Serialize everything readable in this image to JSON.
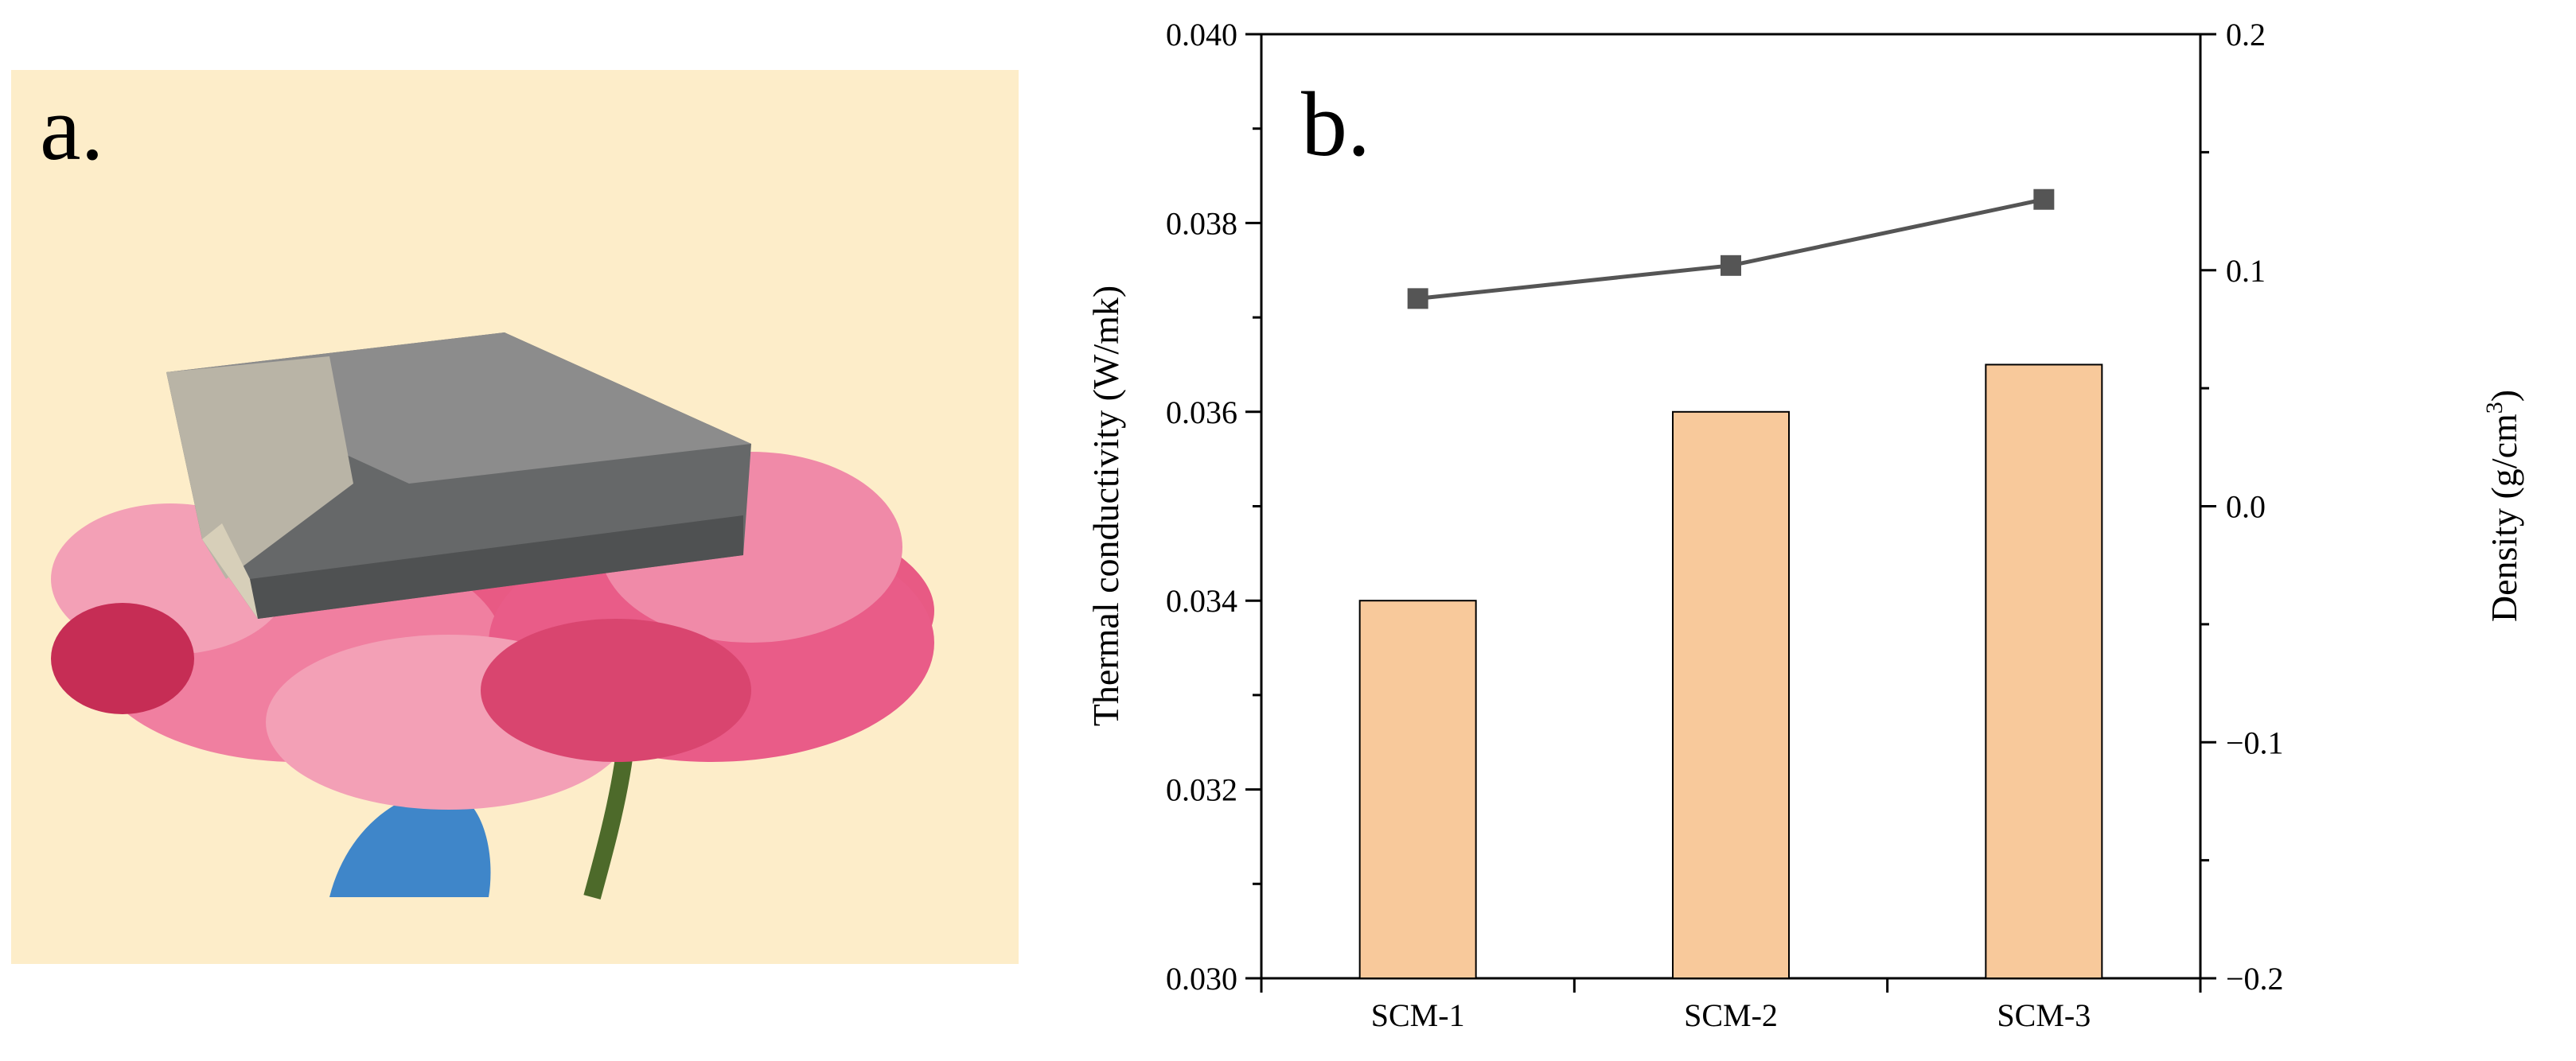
{
  "panel_a": {
    "label": "a.",
    "background_color": "#fdedc9",
    "photo": "grey fibrous composite block resting on a pink rose flower, held from below by a blue-gloved hand"
  },
  "chart_data": {
    "panel_label": "b.",
    "type": "bar",
    "categories": [
      "SCM-1",
      "SCM-2",
      "SCM-3"
    ],
    "series": [
      {
        "name": "",
        "kind": "bar",
        "axis": "left",
        "values": [
          0.034,
          0.036,
          0.0365
        ],
        "color": "#f8c99b"
      },
      {
        "name": "",
        "kind": "line",
        "axis": "right",
        "marker": "square",
        "values": [
          0.088,
          0.102,
          0.13
        ],
        "color": "#555555"
      }
    ],
    "ylabel_left": "Thermal conductivity (W/mk)",
    "ylabel_right_main": "Density (g/cm",
    "ylabel_right_sup": "3",
    "ylabel_right_close": ")",
    "ylim_left": [
      0.03,
      0.04
    ],
    "ylim_right": [
      -0.2,
      0.2
    ],
    "yticks_left": [
      "0.030",
      "0.032",
      "0.034",
      "0.036",
      "0.038",
      "0.040"
    ],
    "yticks_right": [
      "−0.2",
      "−0.1",
      "0.0",
      "0.1",
      "0.2"
    ],
    "grid": false,
    "legend": "none"
  }
}
